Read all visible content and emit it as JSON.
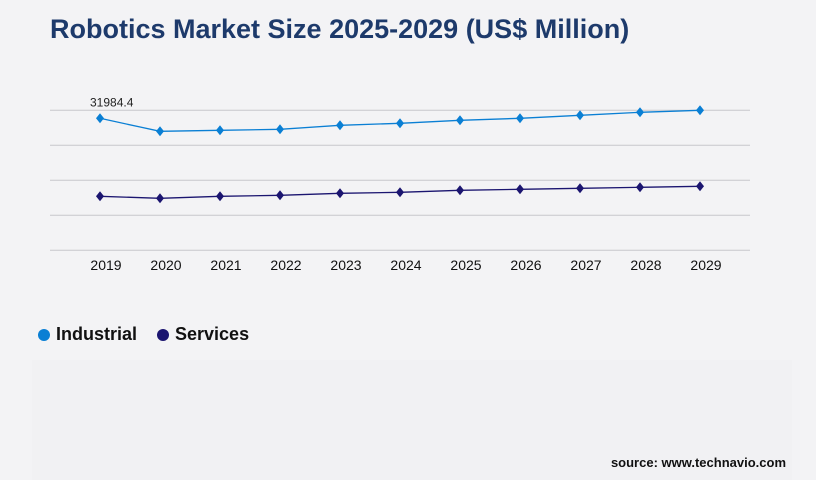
{
  "chart_data": {
    "type": "line",
    "title": "Robotics Market Size 2025-2029 (US$ Million)",
    "categories": [
      "2019",
      "2020",
      "2021",
      "2022",
      "2023",
      "2024",
      "2025",
      "2026",
      "2027",
      "2028",
      "2029"
    ],
    "series": [
      {
        "name": "Industrial",
        "color": "#0a7fd4",
        "values": [
          31984.4,
          28834,
          29076,
          29318,
          30288,
          30772,
          31499,
          31984,
          32711,
          33437,
          33922
        ]
      },
      {
        "name": "Services",
        "color": "#1b1570",
        "values": [
          13084,
          12600,
          13084,
          13327,
          13811,
          14053,
          14538,
          14780,
          15023,
          15265,
          15507
        ]
      }
    ],
    "data_labels": [
      {
        "series": "Industrial",
        "category": "2019",
        "text": "31984.4"
      }
    ],
    "ylim": [
      0,
      33922
    ],
    "grid": true,
    "legend_position": "bottom-left",
    "xlabel": "",
    "ylabel": ""
  },
  "source": "source: www.technavio.com"
}
